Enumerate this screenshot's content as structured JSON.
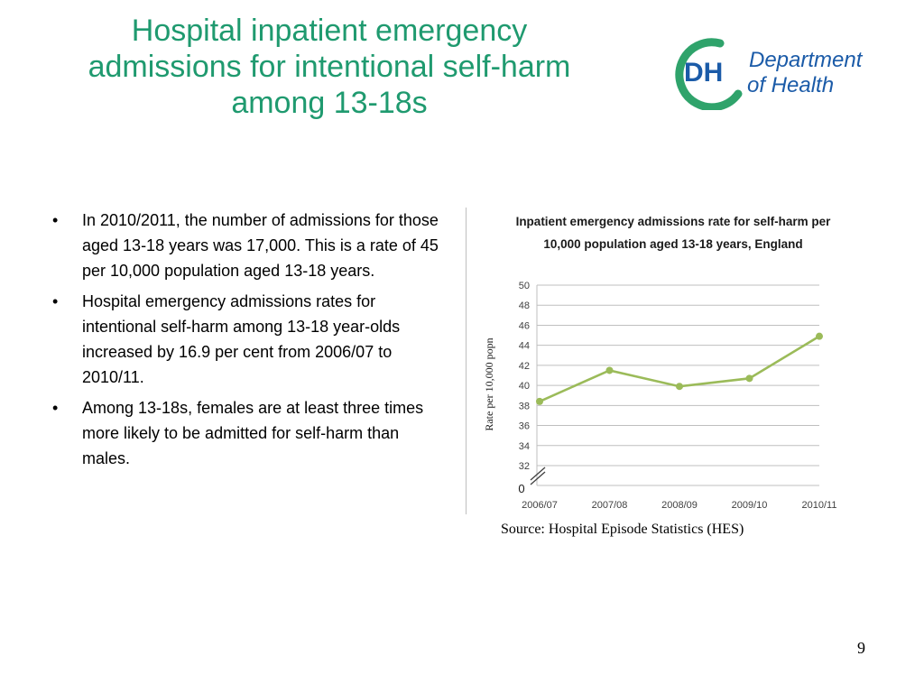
{
  "slide": {
    "title_lines": [
      "Hospital inpatient emergency",
      "admissions for intentional self-harm",
      "among 13-18s"
    ],
    "title_color": "#1f9a6f",
    "logo": {
      "mark": "DH",
      "text_line1": "Department",
      "text_line2": "of Health",
      "colors": {
        "green": "#2fa36b",
        "blue": "#1b5ba8"
      }
    },
    "bullets": [
      "In 2010/2011, the number of admissions for those aged 13-18 years was 17,000. This is a rate of 45  per 10,000 population aged 13-18 years.",
      "Hospital emergency admissions rates for intentional self-harm among 13-18 year-olds increased by 16.9 per cent from 2006/07 to 2010/11.",
      "Among 13-18s, females are at least three times more likely to be admitted for self-harm than males."
    ],
    "source": "Source: Hospital Episode Statistics (HES)",
    "page_number": "9"
  },
  "chart_data": {
    "type": "line",
    "title_lines": [
      "Inpatient emergency admissions rate for self-harm per",
      "10,000 population  aged 13-18 years, England"
    ],
    "ylabel": "Rate per 10,000 popn",
    "xlabel": "",
    "categories": [
      "2006/07",
      "2007/08",
      "2008/09",
      "2009/10",
      "2010/11"
    ],
    "series": [
      {
        "values": [
          38.4,
          41.5,
          39.9,
          40.7,
          44.9
        ],
        "color": "#9bbb59"
      }
    ],
    "ylim": [
      32,
      50
    ],
    "yticks": [
      32,
      34,
      36,
      38,
      40,
      42,
      44,
      46,
      48,
      50
    ],
    "axis_break": true,
    "axis_zero_label": "0",
    "grid": true,
    "legend": "none"
  }
}
